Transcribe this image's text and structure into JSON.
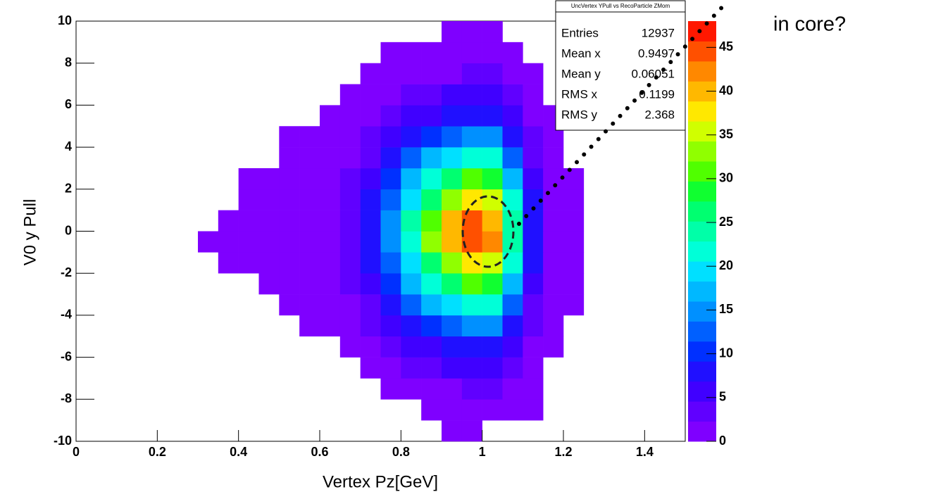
{
  "chart_data": {
    "type": "heatmap",
    "xlabel": "Vertex Pz[GeV]",
    "ylabel": "V0 y Pull",
    "annotation": "in core?",
    "xlim": [
      0,
      1.5
    ],
    "xticks": [
      0,
      0.2,
      0.4,
      0.6,
      0.8,
      1,
      1.2,
      1.4
    ],
    "ylim": [
      -10,
      10
    ],
    "yticks": [
      -10,
      -8,
      -6,
      -4,
      -2,
      0,
      2,
      4,
      6,
      8,
      10
    ],
    "zlim": [
      0,
      48
    ],
    "zticks": [
      0,
      5,
      10,
      15,
      20,
      25,
      30,
      35,
      40,
      45
    ],
    "colors": [
      "#7f00ff",
      "#6000ff",
      "#4000ff",
      "#2010ff",
      "#0030ff",
      "#0060ff",
      "#0090ff",
      "#00b8ff",
      "#00e0ff",
      "#00ffd8",
      "#00ffa8",
      "#00ff70",
      "#10ff30",
      "#50ff00",
      "#90ff00",
      "#d0ff00",
      "#ffe800",
      "#ffb800",
      "#ff8800",
      "#ff5000",
      "#ff1800"
    ],
    "x_bins": [
      0.3,
      0.35,
      0.4,
      0.45,
      0.5,
      0.55,
      0.6,
      0.65,
      0.7,
      0.75,
      0.8,
      0.85,
      0.9,
      0.95,
      1,
      1.05,
      1.1,
      1.15,
      1.2,
      1.25,
      1.3
    ],
    "y_bins": [
      -10,
      -9,
      -8,
      -7,
      -6,
      -5,
      -4,
      -3,
      -2,
      -1,
      0,
      1,
      2,
      3,
      4,
      5,
      6,
      7,
      8,
      9,
      10
    ],
    "z": [
      [
        0,
        0,
        0,
        0,
        0,
        0,
        0,
        0,
        0,
        0,
        0,
        0,
        1,
        1,
        0,
        0,
        0,
        0,
        0,
        0
      ],
      [
        0,
        0,
        0,
        0,
        0,
        0,
        0,
        0,
        0,
        0,
        0,
        1,
        1,
        2,
        1,
        1,
        1,
        0,
        0,
        0
      ],
      [
        0,
        0,
        0,
        0,
        0,
        0,
        0,
        0,
        0,
        1,
        1,
        2,
        2,
        3,
        3,
        2,
        1,
        0,
        0,
        0
      ],
      [
        0,
        0,
        0,
        0,
        0,
        0,
        0,
        0,
        1,
        2,
        3,
        4,
        5,
        5,
        5,
        3,
        1,
        0,
        0,
        0
      ],
      [
        0,
        0,
        0,
        0,
        0,
        0,
        0,
        1,
        2,
        3,
        5,
        6,
        8,
        9,
        8,
        5,
        2,
        1,
        0,
        0
      ],
      [
        0,
        0,
        0,
        0,
        0,
        1,
        1,
        1,
        3,
        5,
        8,
        11,
        13,
        15,
        14,
        8,
        3,
        1,
        0,
        0
      ],
      [
        0,
        0,
        0,
        0,
        1,
        1,
        1,
        2,
        4,
        7,
        12,
        16,
        20,
        22,
        21,
        12,
        4,
        1,
        1,
        0
      ],
      [
        0,
        0,
        0,
        1,
        1,
        1,
        1,
        3,
        6,
        10,
        16,
        22,
        27,
        31,
        29,
        17,
        6,
        1,
        1,
        0
      ],
      [
        0,
        1,
        1,
        1,
        1,
        1,
        2,
        4,
        8,
        12,
        20,
        27,
        34,
        38,
        35,
        21,
        8,
        2,
        1,
        0
      ],
      [
        1,
        1,
        1,
        1,
        1,
        1,
        2,
        4,
        9,
        14,
        22,
        32,
        40,
        45,
        42,
        24,
        9,
        2,
        1,
        0
      ],
      [
        0,
        1,
        1,
        1,
        1,
        1,
        2,
        4,
        9,
        14,
        23,
        31,
        39,
        44,
        41,
        25,
        9,
        2,
        1,
        0
      ],
      [
        0,
        0,
        1,
        1,
        1,
        1,
        2,
        4,
        8,
        12,
        20,
        27,
        34,
        38,
        36,
        21,
        8,
        2,
        1,
        0
      ],
      [
        0,
        0,
        1,
        1,
        1,
        1,
        1,
        3,
        6,
        10,
        16,
        22,
        27,
        31,
        29,
        17,
        6,
        1,
        1,
        0
      ],
      [
        0,
        0,
        0,
        0,
        1,
        1,
        1,
        2,
        4,
        7,
        12,
        16,
        20,
        22,
        21,
        12,
        4,
        1,
        0,
        0
      ],
      [
        0,
        0,
        0,
        0,
        1,
        1,
        1,
        1,
        3,
        5,
        8,
        11,
        13,
        15,
        14,
        8,
        3,
        1,
        0,
        0
      ],
      [
        0,
        0,
        0,
        0,
        0,
        0,
        1,
        1,
        2,
        3,
        5,
        6,
        8,
        9,
        8,
        5,
        2,
        1,
        0,
        0
      ],
      [
        0,
        0,
        0,
        0,
        0,
        0,
        0,
        1,
        1,
        2,
        3,
        4,
        5,
        5,
        5,
        3,
        1,
        0,
        0,
        0
      ],
      [
        0,
        0,
        0,
        0,
        0,
        0,
        0,
        0,
        1,
        1,
        1,
        2,
        2,
        3,
        3,
        2,
        1,
        0,
        0,
        0
      ],
      [
        0,
        0,
        0,
        0,
        0,
        0,
        0,
        0,
        0,
        1,
        1,
        1,
        2,
        2,
        2,
        1,
        0,
        0,
        0,
        0
      ],
      [
        0,
        0,
        0,
        0,
        0,
        0,
        0,
        0,
        0,
        0,
        0,
        0,
        1,
        1,
        1,
        0,
        0,
        0,
        0,
        0
      ]
    ],
    "stats": {
      "title": "UncVertex YPull vs RecoParticle ZMom",
      "rows": [
        {
          "label": "Entries",
          "value": 12937
        },
        {
          "label": "Mean x",
          "value": 0.9497
        },
        {
          "label": "Mean y",
          "value": 0.06051
        },
        {
          "label": "RMS x",
          "value": 0.1199
        },
        {
          "label": "RMS y",
          "value": 2.368
        }
      ]
    }
  }
}
